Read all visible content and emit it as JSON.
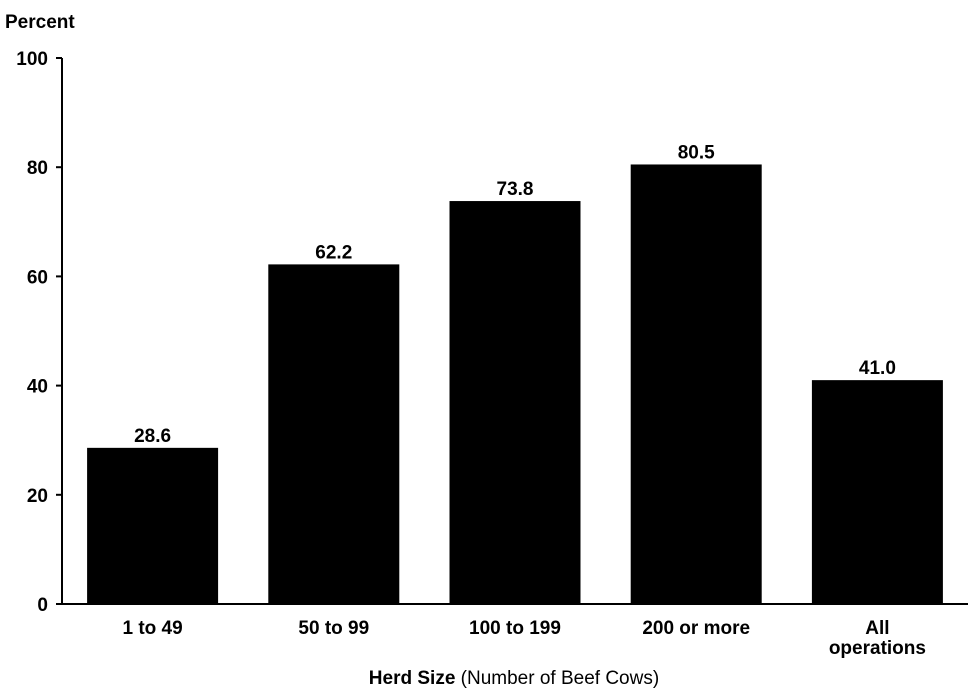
{
  "chart_data": {
    "type": "bar",
    "ylabel": "Percent",
    "xlabel_bold": "Herd Size",
    "xlabel_rest": "(Number of Beef Cows)",
    "ylim": [
      0,
      100
    ],
    "yticks": [
      0,
      20,
      40,
      60,
      80,
      100
    ],
    "grid": false,
    "categories": [
      [
        "1 to 49"
      ],
      [
        "50 to 99"
      ],
      [
        "100 to 199"
      ],
      [
        "200 or more"
      ],
      [
        "All",
        "operations"
      ]
    ],
    "values": [
      28.6,
      62.2,
      73.8,
      80.5,
      41.0
    ],
    "value_labels": [
      "28.6",
      "62.2",
      "73.8",
      "80.5",
      "41.0"
    ],
    "bar_color": "#000000"
  }
}
